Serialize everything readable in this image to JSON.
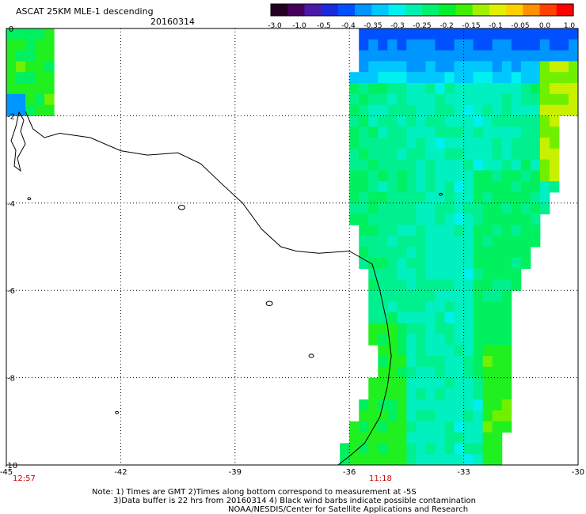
{
  "header": {
    "title": "ASCAT 25KM MLE-1 descending",
    "date": "20160314"
  },
  "colorbar": {
    "tick_labels": [
      "-3.0",
      "-1.0",
      "-0.5",
      "-0.4",
      "-0.35",
      "-0.3",
      "-0.25",
      "-0.2",
      "-0.15",
      "-0.1",
      "-0.05",
      "0.0",
      "1.0"
    ],
    "colors": [
      "#220022",
      "#44005a",
      "#4a1aa8",
      "#1a2adc",
      "#0050ff",
      "#0096ff",
      "#00c8ff",
      "#00f0f0",
      "#00f0b0",
      "#00f070",
      "#00f030",
      "#40f000",
      "#a0f000",
      "#e0f000",
      "#ffd000",
      "#ff9000",
      "#ff4000",
      "#ff0000"
    ]
  },
  "map": {
    "x_ticks": [
      "-45",
      "-42",
      "-39",
      "-36",
      "-33",
      "-30"
    ],
    "y_ticks": [
      "0",
      "-2",
      "-4",
      "-6",
      "-8",
      "-10"
    ],
    "time_left": "12:57",
    "time_right": "11:18",
    "time_color": "#cc0000"
  },
  "footer": {
    "line1": "Note: 1) Times are GMT 2)Times along bottom correspond to measurement at -5S",
    "line2": "3)Data buffer is 22 hrs from 20160314 4) Black wind barbs indicate possible contamination",
    "line3": "NOAA/NESDIS/Center for Satellite Applications and Research"
  }
}
